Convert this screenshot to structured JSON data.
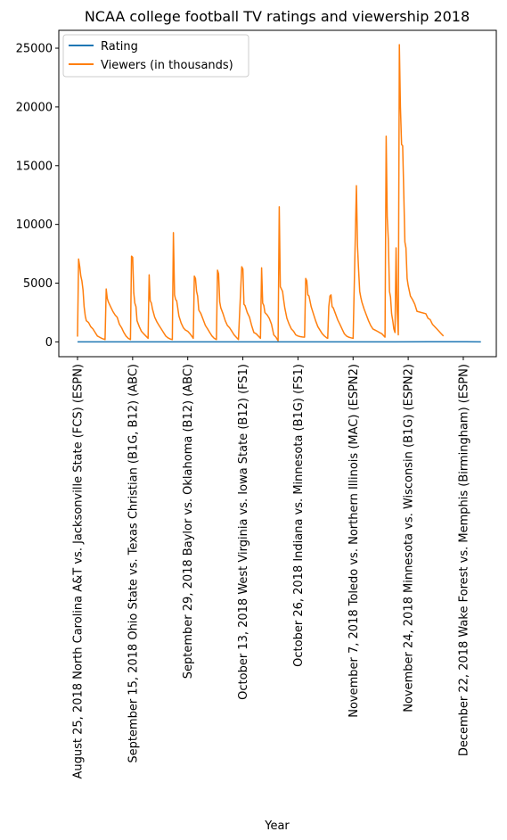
{
  "chart_data": {
    "type": "line",
    "title": "NCAA college football TV ratings and viewership 2018",
    "xlabel": "Year",
    "ylabel": "",
    "ylim": [
      -1260,
      26520
    ],
    "yticks": [
      0,
      5000,
      10000,
      15000,
      20000,
      25000
    ],
    "xticks": [
      {
        "index": 0,
        "label": "August 25, 2018 North Carolina A&T vs. Jacksonville State (FCS) (ESPN)"
      },
      {
        "index": 50,
        "label": "September 15, 2018 Ohio State vs. Texas Christian (B1G, B12) (ABC)"
      },
      {
        "index": 100,
        "label": "September 29, 2018 Baylor vs. Oklahoma (B12) (ABC)"
      },
      {
        "index": 150,
        "label": "October 13, 2018 West Virginia vs. Iowa State (B12) (FS1)"
      },
      {
        "index": 200,
        "label": "October 26, 2018 Indiana vs. Minnesota (B1G) (FS1)"
      },
      {
        "index": 250,
        "label": "November 7, 2018 Toledo vs. Northern Illinois (MAC) (ESPN2)"
      },
      {
        "index": 300,
        "label": "November 24, 2018 Minnesota vs. Wisconsin (B1G) (ESPN2)"
      },
      {
        "index": 350,
        "label": "December 22, 2018 Wake Forest vs. Memphis (Birmingham) (ESPN)"
      }
    ],
    "legend": {
      "position": "top-left"
    },
    "series": [
      {
        "name": "Rating",
        "color": "#1f77b4",
        "points": [
          [
            0,
            3
          ],
          [
            68,
            3
          ],
          [
            178,
            3
          ],
          [
            288,
            3
          ],
          [
            320,
            5
          ],
          [
            330,
            6
          ],
          [
            340,
            6
          ],
          [
            347,
            8
          ],
          [
            352,
            5
          ],
          [
            366,
            3
          ]
        ]
      },
      {
        "name": "Viewers (in thousands)",
        "color": "#ff7f0e",
        "points": [
          [
            0,
            450
          ],
          [
            1,
            7050
          ],
          [
            2,
            6400
          ],
          [
            3,
            5600
          ],
          [
            4,
            5200
          ],
          [
            5,
            4400
          ],
          [
            6,
            3000
          ],
          [
            7,
            2200
          ],
          [
            8,
            1800
          ],
          [
            10,
            1650
          ],
          [
            12,
            1300
          ],
          [
            14,
            1100
          ],
          [
            16,
            800
          ],
          [
            18,
            500
          ],
          [
            20,
            400
          ],
          [
            22,
            300
          ],
          [
            25,
            200
          ],
          [
            26,
            4500
          ],
          [
            27,
            3700
          ],
          [
            28,
            3400
          ],
          [
            30,
            3000
          ],
          [
            32,
            2600
          ],
          [
            34,
            2300
          ],
          [
            36,
            2100
          ],
          [
            38,
            1500
          ],
          [
            40,
            1200
          ],
          [
            42,
            800
          ],
          [
            44,
            500
          ],
          [
            46,
            300
          ],
          [
            48,
            200
          ],
          [
            49,
            7300
          ],
          [
            50,
            7200
          ],
          [
            51,
            4200
          ],
          [
            52,
            3300
          ],
          [
            53,
            3000
          ],
          [
            54,
            1800
          ],
          [
            56,
            1300
          ],
          [
            58,
            900
          ],
          [
            60,
            700
          ],
          [
            62,
            500
          ],
          [
            64,
            300
          ],
          [
            65,
            5700
          ],
          [
            66,
            3500
          ],
          [
            67,
            3300
          ],
          [
            68,
            2800
          ],
          [
            70,
            2100
          ],
          [
            72,
            1700
          ],
          [
            74,
            1400
          ],
          [
            76,
            1100
          ],
          [
            78,
            800
          ],
          [
            80,
            500
          ],
          [
            82,
            350
          ],
          [
            84,
            250
          ],
          [
            86,
            200
          ],
          [
            87,
            9300
          ],
          [
            88,
            4000
          ],
          [
            89,
            3600
          ],
          [
            90,
            3500
          ],
          [
            92,
            2200
          ],
          [
            94,
            1600
          ],
          [
            96,
            1200
          ],
          [
            98,
            1000
          ],
          [
            100,
            900
          ],
          [
            102,
            700
          ],
          [
            104,
            450
          ],
          [
            105,
            300
          ],
          [
            106,
            5600
          ],
          [
            107,
            5400
          ],
          [
            108,
            4300
          ],
          [
            109,
            3900
          ],
          [
            110,
            2700
          ],
          [
            112,
            2400
          ],
          [
            114,
            1900
          ],
          [
            116,
            1400
          ],
          [
            118,
            1100
          ],
          [
            120,
            800
          ],
          [
            122,
            500
          ],
          [
            124,
            300
          ],
          [
            126,
            200
          ],
          [
            127,
            6100
          ],
          [
            128,
            5800
          ],
          [
            129,
            3400
          ],
          [
            130,
            2900
          ],
          [
            132,
            2400
          ],
          [
            134,
            1800
          ],
          [
            136,
            1400
          ],
          [
            138,
            1200
          ],
          [
            140,
            900
          ],
          [
            142,
            600
          ],
          [
            144,
            400
          ],
          [
            146,
            200
          ],
          [
            149,
            6400
          ],
          [
            150,
            6200
          ],
          [
            151,
            3200
          ],
          [
            152,
            3100
          ],
          [
            154,
            2500
          ],
          [
            156,
            2100
          ],
          [
            158,
            1400
          ],
          [
            160,
            800
          ],
          [
            162,
            700
          ],
          [
            164,
            500
          ],
          [
            166,
            300
          ],
          [
            167,
            6300
          ],
          [
            168,
            3300
          ],
          [
            169,
            3100
          ],
          [
            170,
            2500
          ],
          [
            172,
            2300
          ],
          [
            174,
            2000
          ],
          [
            176,
            1500
          ],
          [
            178,
            600
          ],
          [
            180,
            400
          ],
          [
            182,
            100
          ],
          [
            183,
            11500
          ],
          [
            184,
            4700
          ],
          [
            185,
            4500
          ],
          [
            186,
            4300
          ],
          [
            187,
            3600
          ],
          [
            188,
            2900
          ],
          [
            190,
            2000
          ],
          [
            192,
            1500
          ],
          [
            194,
            1100
          ],
          [
            196,
            900
          ],
          [
            198,
            600
          ],
          [
            200,
            500
          ],
          [
            202,
            450
          ],
          [
            204,
            420
          ],
          [
            206,
            400
          ],
          [
            207,
            5400
          ],
          [
            208,
            5200
          ],
          [
            209,
            4000
          ],
          [
            210,
            3900
          ],
          [
            212,
            3000
          ],
          [
            214,
            2400
          ],
          [
            216,
            1800
          ],
          [
            218,
            1300
          ],
          [
            220,
            1000
          ],
          [
            222,
            700
          ],
          [
            224,
            500
          ],
          [
            226,
            350
          ],
          [
            227,
            300
          ],
          [
            228,
            3000
          ],
          [
            229,
            3900
          ],
          [
            230,
            4000
          ],
          [
            231,
            3000
          ],
          [
            232,
            2900
          ],
          [
            234,
            2400
          ],
          [
            236,
            1900
          ],
          [
            238,
            1500
          ],
          [
            240,
            1100
          ],
          [
            242,
            700
          ],
          [
            244,
            500
          ],
          [
            246,
            400
          ],
          [
            248,
            350
          ],
          [
            250,
            300
          ],
          [
            253,
            13300
          ],
          [
            254,
            8200
          ],
          [
            255,
            6200
          ],
          [
            256,
            4300
          ],
          [
            257,
            3800
          ],
          [
            258,
            3400
          ],
          [
            260,
            2800
          ],
          [
            262,
            2300
          ],
          [
            264,
            1800
          ],
          [
            266,
            1400
          ],
          [
            268,
            1100
          ],
          [
            270,
            1000
          ],
          [
            272,
            900
          ],
          [
            274,
            800
          ],
          [
            276,
            700
          ],
          [
            278,
            500
          ],
          [
            279,
            400
          ],
          [
            280,
            17500
          ],
          [
            281,
            10600
          ],
          [
            282,
            8700
          ],
          [
            283,
            4300
          ],
          [
            284,
            3800
          ],
          [
            285,
            2400
          ],
          [
            286,
            1800
          ],
          [
            287,
            1100
          ],
          [
            288,
            800
          ],
          [
            289,
            8000
          ],
          [
            290,
            2700
          ],
          [
            291,
            600
          ],
          [
            292,
            25300
          ],
          [
            293,
            20000
          ],
          [
            294,
            16800
          ],
          [
            295,
            16700
          ],
          [
            296,
            12500
          ],
          [
            297,
            8500
          ],
          [
            298,
            8000
          ],
          [
            299,
            5400
          ],
          [
            300,
            4800
          ],
          [
            302,
            3900
          ],
          [
            304,
            3600
          ],
          [
            306,
            3200
          ],
          [
            308,
            2600
          ],
          [
            312,
            2500
          ],
          [
            316,
            2400
          ],
          [
            318,
            2000
          ],
          [
            320,
            1900
          ],
          [
            322,
            1500
          ],
          [
            324,
            1300
          ],
          [
            326,
            1100
          ],
          [
            328,
            900
          ],
          [
            330,
            700
          ],
          [
            332,
            500
          ]
        ]
      }
    ]
  }
}
